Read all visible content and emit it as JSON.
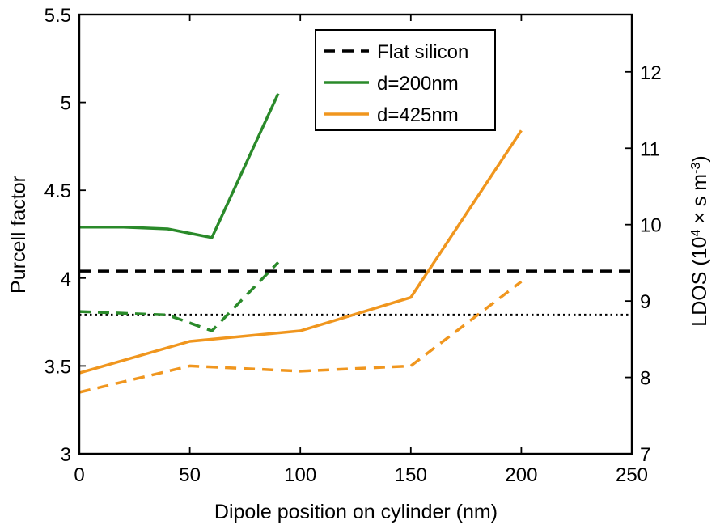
{
  "chart_data": {
    "type": "line",
    "xlabel": "Dipole position on cylinder (nm)",
    "ylabel_left": "Purcell factor",
    "ylabel_right": {
      "prefix": "LDOS (10",
      "exp1": "4",
      "middle": " × s m",
      "exp2": "-3",
      "suffix": ")"
    },
    "xlim": [
      0,
      250
    ],
    "ylim_left": [
      3,
      5.5
    ],
    "ylim_right": [
      7,
      12.75
    ],
    "x_ticks": [
      "0",
      "50",
      "100",
      "150",
      "200",
      "250"
    ],
    "x_tick_values": [
      0,
      50,
      100,
      150,
      200,
      250
    ],
    "y_left_ticks": [
      "3",
      "3.5",
      "4",
      "4.5",
      "5",
      "5.5"
    ],
    "y_left_tick_values": [
      3,
      3.5,
      4,
      4.5,
      5,
      5.5
    ],
    "y_right_ticks": [
      "7",
      "8",
      "9",
      "10",
      "11",
      "12"
    ],
    "y_right_tick_values": [
      7,
      8,
      9,
      10,
      11,
      12
    ],
    "grid": false,
    "legend_position": "top-center",
    "legend": [
      {
        "label": "Flat silicon",
        "color": "#000000",
        "dash": "dashed"
      },
      {
        "label": "d=200nm",
        "color": "#2a8a2a",
        "dash": "solid"
      },
      {
        "label": "d=425nm",
        "color": "#f0961e",
        "dash": "solid"
      }
    ],
    "series": [
      {
        "id": "flat-purcell",
        "axis": "left",
        "color": "#000000",
        "dash": "dashed",
        "x": [
          0,
          250
        ],
        "y": [
          4.04,
          4.04
        ]
      },
      {
        "id": "flat-ldos",
        "axis": "left",
        "color": "#000000",
        "dash": "dotted",
        "x": [
          0,
          250
        ],
        "y": [
          3.79,
          3.79
        ]
      },
      {
        "id": "d200-purcell",
        "axis": "left",
        "color": "#2a8a2a",
        "dash": "solid",
        "x": [
          0,
          20,
          40,
          60,
          90
        ],
        "y": [
          4.29,
          4.29,
          4.28,
          4.23,
          5.05
        ]
      },
      {
        "id": "d200-ldos",
        "axis": "left",
        "color": "#2a8a2a",
        "dash": "dashed",
        "x": [
          0,
          40,
          60,
          90
        ],
        "y": [
          3.81,
          3.79,
          3.7,
          4.09
        ]
      },
      {
        "id": "d425-purcell",
        "axis": "left",
        "color": "#f0961e",
        "dash": "solid",
        "x": [
          0,
          50,
          100,
          150,
          200
        ],
        "y": [
          3.46,
          3.64,
          3.7,
          3.89,
          4.84
        ]
      },
      {
        "id": "d425-ldos",
        "axis": "left",
        "color": "#f0961e",
        "dash": "dashed",
        "x": [
          0,
          50,
          100,
          150,
          200
        ],
        "y": [
          3.35,
          3.5,
          3.47,
          3.5,
          3.98
        ]
      }
    ]
  }
}
